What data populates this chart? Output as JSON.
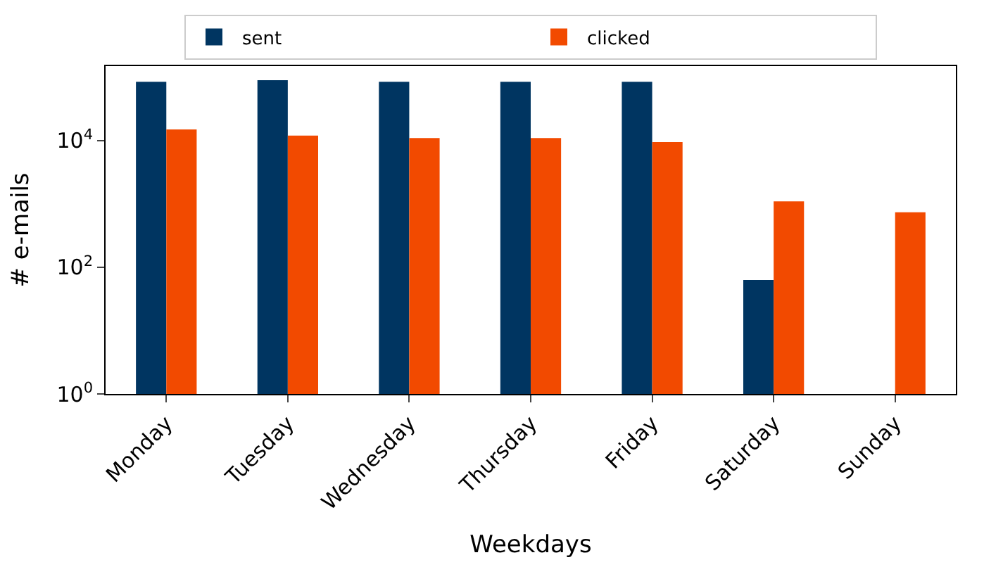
{
  "chart_data": {
    "type": "bar",
    "xlabel": "Weekdays",
    "ylabel": "# e-mails",
    "log": "y",
    "legend": "top",
    "categories": [
      "Monday",
      "Tuesday",
      "Wednesday",
      "Thursday",
      "Friday",
      "Saturday",
      "Sunday"
    ],
    "series": [
      {
        "name": "sent",
        "color": "#003561",
        "values": [
          85000,
          90000,
          85000,
          85000,
          85000,
          63,
          null
        ]
      },
      {
        "name": "clicked",
        "color": "#f24a00",
        "values": [
          15000,
          12000,
          11000,
          11000,
          9500,
          1100,
          740
        ]
      }
    ],
    "ylim": [
      1,
      150000
    ],
    "yticks": [
      {
        "value": 1,
        "label": "10$^{0}$"
      },
      {
        "value": 100,
        "label": "10$^{2}$"
      },
      {
        "value": 10000,
        "label": "10$^{4}$"
      }
    ]
  }
}
